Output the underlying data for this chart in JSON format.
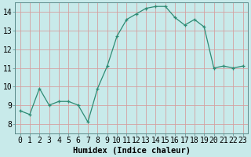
{
  "x": [
    0,
    1,
    2,
    3,
    4,
    5,
    6,
    7,
    8,
    9,
    10,
    11,
    12,
    13,
    14,
    15,
    16,
    17,
    18,
    19,
    20,
    21,
    22,
    23
  ],
  "y": [
    8.7,
    8.5,
    9.9,
    9.0,
    9.2,
    9.2,
    9.0,
    8.1,
    9.9,
    11.1,
    12.7,
    13.6,
    13.9,
    14.2,
    14.3,
    14.3,
    13.7,
    13.3,
    13.6,
    13.2,
    11.0,
    11.1,
    11.0,
    11.1
  ],
  "line_color": "#2e8b74",
  "marker": "+",
  "bg_color": "#c8eaea",
  "grid_color_major": "#d4a0a0",
  "grid_color_minor": "#d4b8b8",
  "xlabel": "Humidex (Indice chaleur)",
  "ylim": [
    7.5,
    14.5
  ],
  "xlim": [
    -0.5,
    23.5
  ],
  "yticks": [
    8,
    9,
    10,
    11,
    12,
    13,
    14
  ],
  "xtick_labels": [
    "0",
    "1",
    "2",
    "3",
    "4",
    "5",
    "6",
    "7",
    "8",
    "9",
    "10",
    "11",
    "12",
    "13",
    "14",
    "15",
    "16",
    "17",
    "18",
    "19",
    "20",
    "21",
    "22",
    "23"
  ],
  "label_fontsize": 7.5,
  "tick_fontsize": 7
}
